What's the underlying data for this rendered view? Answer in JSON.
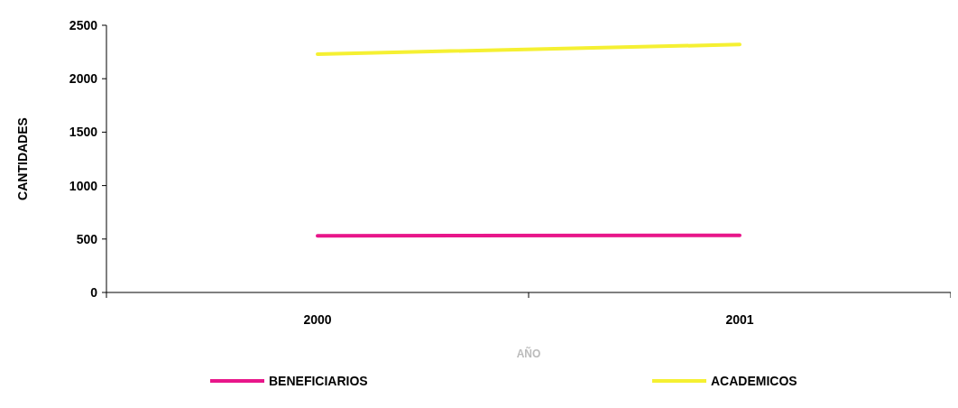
{
  "chart_data": {
    "type": "line",
    "xlabel": "AÑO",
    "ylabel": "CANTIDADES",
    "categories": [
      "2000",
      "2001"
    ],
    "series": [
      {
        "name": "BENEFICIARIOS",
        "color": "#e8168a",
        "values": [
          530,
          535
        ]
      },
      {
        "name": "ACADEMICOS",
        "color": "#f5f032",
        "values": [
          2230,
          2320
        ]
      }
    ],
    "ylim": [
      0,
      2500
    ],
    "yticks": [
      0,
      500,
      1000,
      1500,
      2000,
      2500
    ],
    "grid": false,
    "legend": "bottom",
    "marker": "none",
    "line_style": "solid"
  }
}
